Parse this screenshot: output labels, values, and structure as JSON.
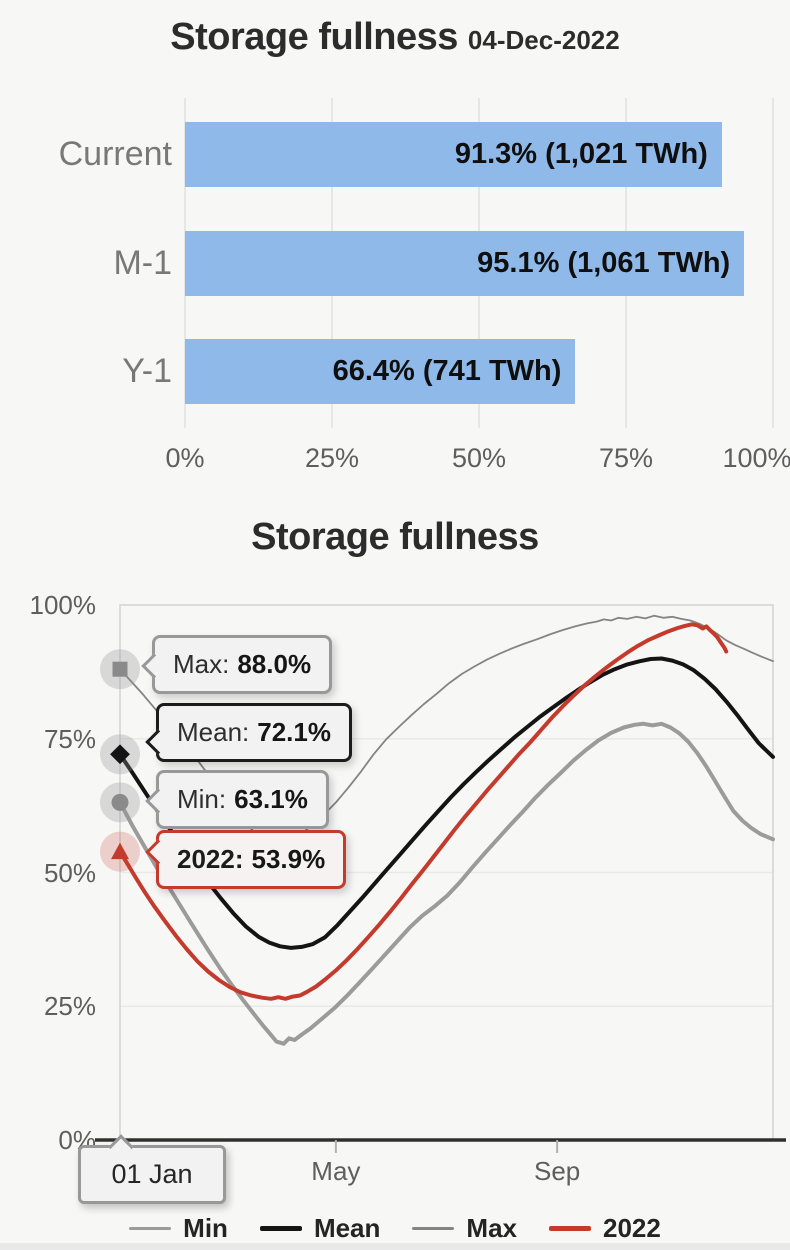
{
  "chart_data": [
    {
      "type": "bar",
      "title": "Storage fullness",
      "subtitle": "04-Dec-2022",
      "orientation": "horizontal",
      "categories": [
        "Current",
        "M-1",
        "Y-1"
      ],
      "values": [
        91.3,
        95.1,
        66.4
      ],
      "values_twh": [
        1021,
        1061,
        741
      ],
      "bar_labels": [
        "91.3% (1,021 TWh)",
        "95.1% (1,061 TWh)",
        "66.4% (741 TWh)"
      ],
      "x_tick_labels": [
        "0%",
        "25%",
        "50%",
        "75%",
        "100%"
      ],
      "x_tick_values": [
        0,
        25,
        50,
        75,
        100
      ],
      "xlim": [
        0,
        100
      ],
      "grid": "vertical",
      "bar_color": "#8fb9e8"
    },
    {
      "type": "line",
      "title": "Storage fullness",
      "ylim": [
        0,
        100
      ],
      "y_tick_labels": [
        "100%",
        "75%",
        "50%",
        "25%",
        "0%"
      ],
      "y_tick_values": [
        100,
        75,
        50,
        25,
        0
      ],
      "x_tick_labels": [
        "Jan",
        "May",
        "Sep"
      ],
      "x_tick_days": [
        1,
        121,
        244
      ],
      "x_axis_tooltip": "01 Jan",
      "grid": "horizontal",
      "legend_position": "bottom",
      "callouts": [
        {
          "series": "Max",
          "label": "Max:",
          "value": "88.0%",
          "marker": "square",
          "color": "#8a8a8a"
        },
        {
          "series": "Mean",
          "label": "Mean:",
          "value": "72.1%",
          "marker": "diamond",
          "color": "#141414"
        },
        {
          "series": "Min",
          "label": "Min:",
          "value": "63.1%",
          "marker": "circle",
          "color": "#8a8a8a"
        },
        {
          "series": "2022",
          "label": "2022:",
          "value": "53.9%",
          "marker": "triangle",
          "color": "#c43a2c"
        }
      ],
      "legend": [
        {
          "label": "Min",
          "color": "#9b9b9b",
          "weight": 3
        },
        {
          "label": "Mean",
          "color": "#141414",
          "weight": 5
        },
        {
          "label": "Max",
          "color": "#848484",
          "weight": 3
        },
        {
          "label": "2022",
          "color": "#c43a2c",
          "weight": 5
        }
      ],
      "series": [
        {
          "name": "Max",
          "color": "#848484",
          "width": 1.8,
          "points": [
            [
              1,
              88
            ],
            [
              7,
              85.8
            ],
            [
              14,
              83.2
            ],
            [
              21,
              80.4
            ],
            [
              28,
              77.6
            ],
            [
              35,
              74.9
            ],
            [
              42,
              71.9
            ],
            [
              49,
              68.8
            ],
            [
              56,
              65.7
            ],
            [
              63,
              62.5
            ],
            [
              70,
              59.6
            ],
            [
              76,
              57.4
            ],
            [
              82,
              55.6
            ],
            [
              87,
              54.5
            ],
            [
              91,
              54.9
            ],
            [
              96,
              55.9
            ],
            [
              102,
              57.3
            ],
            [
              108,
              58.9
            ],
            [
              114,
              60.7
            ],
            [
              121,
              63.1
            ],
            [
              128,
              65.9
            ],
            [
              135,
              68.9
            ],
            [
              142,
              72.1
            ],
            [
              149,
              74.9
            ],
            [
              156,
              77.2
            ],
            [
              163,
              79.4
            ],
            [
              170,
              81.5
            ],
            [
              177,
              83.4
            ],
            [
              184,
              85.4
            ],
            [
              191,
              87.1
            ],
            [
              198,
              88.5
            ],
            [
              205,
              89.8
            ],
            [
              212,
              90.9
            ],
            [
              219,
              91.9
            ],
            [
              226,
              92.8
            ],
            [
              233,
              93.6
            ],
            [
              240,
              94.5
            ],
            [
              247,
              95.3
            ],
            [
              254,
              96
            ],
            [
              261,
              96.6
            ],
            [
              266,
              96.9
            ],
            [
              270,
              97.3
            ],
            [
              274,
              97.1
            ],
            [
              278,
              97.6
            ],
            [
              283,
              97.4
            ],
            [
              288,
              97.8
            ],
            [
              293,
              97.5
            ],
            [
              298,
              98
            ],
            [
              303,
              97.6
            ],
            [
              308,
              97.8
            ],
            [
              313,
              97.4
            ],
            [
              318,
              97.1
            ],
            [
              323,
              96.5
            ],
            [
              328,
              95.7
            ],
            [
              333,
              94.6
            ],
            [
              338,
              93.4
            ],
            [
              343,
              92.5
            ],
            [
              348,
              91.8
            ],
            [
              353,
              91
            ],
            [
              358,
              90.3
            ],
            [
              364,
              89.5
            ]
          ]
        },
        {
          "name": "Mean",
          "color": "#141414",
          "width": 4,
          "points": [
            [
              1,
              72.1
            ],
            [
              8,
              68.6
            ],
            [
              15,
              65
            ],
            [
              22,
              61.4
            ],
            [
              29,
              58
            ],
            [
              36,
              54.7
            ],
            [
              43,
              51.4
            ],
            [
              50,
              48.2
            ],
            [
              57,
              45.2
            ],
            [
              64,
              42.4
            ],
            [
              71,
              39.9
            ],
            [
              78,
              38
            ],
            [
              84,
              36.9
            ],
            [
              90,
              36.2
            ],
            [
              96,
              35.9
            ],
            [
              102,
              36.1
            ],
            [
              108,
              36.6
            ],
            [
              115,
              37.9
            ],
            [
              122,
              40.2
            ],
            [
              129,
              42.8
            ],
            [
              136,
              45.4
            ],
            [
              143,
              48.1
            ],
            [
              150,
              50.8
            ],
            [
              157,
              53.5
            ],
            [
              164,
              56.2
            ],
            [
              171,
              58.9
            ],
            [
              178,
              61.5
            ],
            [
              185,
              64.1
            ],
            [
              192,
              66.5
            ],
            [
              199,
              68.8
            ],
            [
              206,
              71
            ],
            [
              213,
              73.1
            ],
            [
              220,
              75.2
            ],
            [
              227,
              77.1
            ],
            [
              234,
              79
            ],
            [
              241,
              80.7
            ],
            [
              248,
              82.4
            ],
            [
              255,
              84
            ],
            [
              262,
              85.5
            ],
            [
              269,
              86.9
            ],
            [
              276,
              88
            ],
            [
              283,
              88.9
            ],
            [
              290,
              89.5
            ],
            [
              296,
              89.9
            ],
            [
              302,
              90
            ],
            [
              308,
              89.6
            ],
            [
              314,
              88.9
            ],
            [
              320,
              87.8
            ],
            [
              326,
              86.2
            ],
            [
              332,
              84.3
            ],
            [
              338,
              82
            ],
            [
              344,
              79.5
            ],
            [
              350,
              76.8
            ],
            [
              356,
              74.2
            ],
            [
              360,
              72.9
            ],
            [
              364,
              71.6
            ]
          ]
        },
        {
          "name": "Min",
          "color": "#9b9b9b",
          "width": 4,
          "points": [
            [
              1,
              63.1
            ],
            [
              8,
              58.7
            ],
            [
              15,
              54.6
            ],
            [
              22,
              50.6
            ],
            [
              29,
              46.8
            ],
            [
              36,
              43
            ],
            [
              43,
              39.2
            ],
            [
              50,
              35.5
            ],
            [
              57,
              31.9
            ],
            [
              64,
              28.6
            ],
            [
              70,
              25.9
            ],
            [
              76,
              23.3
            ],
            [
              81,
              21.2
            ],
            [
              85,
              19.6
            ],
            [
              88,
              18.4
            ],
            [
              92,
              18
            ],
            [
              95,
              19
            ],
            [
              98,
              18.7
            ],
            [
              102,
              19.7
            ],
            [
              107,
              20.9
            ],
            [
              113,
              22.6
            ],
            [
              120,
              24.6
            ],
            [
              127,
              26.9
            ],
            [
              134,
              29.4
            ],
            [
              141,
              31.9
            ],
            [
              148,
              34.5
            ],
            [
              155,
              37.1
            ],
            [
              162,
              39.7
            ],
            [
              169,
              41.9
            ],
            [
              176,
              43.7
            ],
            [
              183,
              45.7
            ],
            [
              190,
              48.2
            ],
            [
              197,
              51
            ],
            [
              204,
              53.7
            ],
            [
              211,
              56.3
            ],
            [
              218,
              58.9
            ],
            [
              225,
              61.4
            ],
            [
              232,
              64
            ],
            [
              239,
              66.4
            ],
            [
              246,
              68.6
            ],
            [
              253,
              70.9
            ],
            [
              260,
              72.9
            ],
            [
              267,
              74.7
            ],
            [
              274,
              76.1
            ],
            [
              281,
              77.1
            ],
            [
              287,
              77.6
            ],
            [
              292,
              77.8
            ],
            [
              297,
              77.5
            ],
            [
              302,
              77.8
            ],
            [
              307,
              77.1
            ],
            [
              312,
              76
            ],
            [
              317,
              74.4
            ],
            [
              322,
              72.3
            ],
            [
              327,
              69.8
            ],
            [
              332,
              67
            ],
            [
              337,
              64.2
            ],
            [
              342,
              61.5
            ],
            [
              347,
              59.7
            ],
            [
              352,
              58.3
            ],
            [
              357,
              57.2
            ],
            [
              364,
              56.2
            ]
          ]
        },
        {
          "name": "2022",
          "color": "#c43a2c",
          "width": 4,
          "points": [
            [
              1,
              53.9
            ],
            [
              5,
              51.7
            ],
            [
              10,
              48.9
            ],
            [
              15,
              46.2
            ],
            [
              20,
              43.7
            ],
            [
              26,
              40.9
            ],
            [
              32,
              38.2
            ],
            [
              38,
              35.7
            ],
            [
              44,
              33.4
            ],
            [
              50,
              31.5
            ],
            [
              56,
              29.9
            ],
            [
              62,
              28.6
            ],
            [
              68,
              27.6
            ],
            [
              74,
              27
            ],
            [
              80,
              26.6
            ],
            [
              85,
              26.4
            ],
            [
              89,
              26.7
            ],
            [
              93,
              26.4
            ],
            [
              97,
              26.8
            ],
            [
              101,
              27
            ],
            [
              105,
              27.7
            ],
            [
              110,
              28.7
            ],
            [
              115,
              30
            ],
            [
              121,
              31.7
            ],
            [
              127,
              33.6
            ],
            [
              133,
              35.7
            ],
            [
              139,
              37.9
            ],
            [
              145,
              40.2
            ],
            [
              151,
              42.6
            ],
            [
              157,
              45.1
            ],
            [
              163,
              47.7
            ],
            [
              169,
              50.2
            ],
            [
              175,
              52.8
            ],
            [
              181,
              55.4
            ],
            [
              187,
              58
            ],
            [
              193,
              60.5
            ],
            [
              199,
              62.9
            ],
            [
              205,
              65.3
            ],
            [
              211,
              67.6
            ],
            [
              217,
              69.9
            ],
            [
              223,
              72.2
            ],
            [
              229,
              74.3
            ],
            [
              235,
              76.6
            ],
            [
              241,
              78.9
            ],
            [
              247,
              81
            ],
            [
              253,
              83
            ],
            [
              259,
              84.9
            ],
            [
              265,
              86.6
            ],
            [
              271,
              88.2
            ],
            [
              277,
              89.7
            ],
            [
              283,
              91.1
            ],
            [
              289,
              92.4
            ],
            [
              295,
              93.5
            ],
            [
              301,
              94.4
            ],
            [
              306,
              95.1
            ],
            [
              311,
              95.7
            ],
            [
              315,
              96.1
            ],
            [
              319,
              96.4
            ],
            [
              322,
              96.2
            ],
            [
              325,
              95.6
            ],
            [
              327,
              96
            ],
            [
              329,
              95.3
            ],
            [
              331,
              94.7
            ],
            [
              333,
              94
            ],
            [
              335,
              93
            ],
            [
              337,
              92
            ],
            [
              338,
              91.3
            ]
          ]
        }
      ]
    }
  ]
}
